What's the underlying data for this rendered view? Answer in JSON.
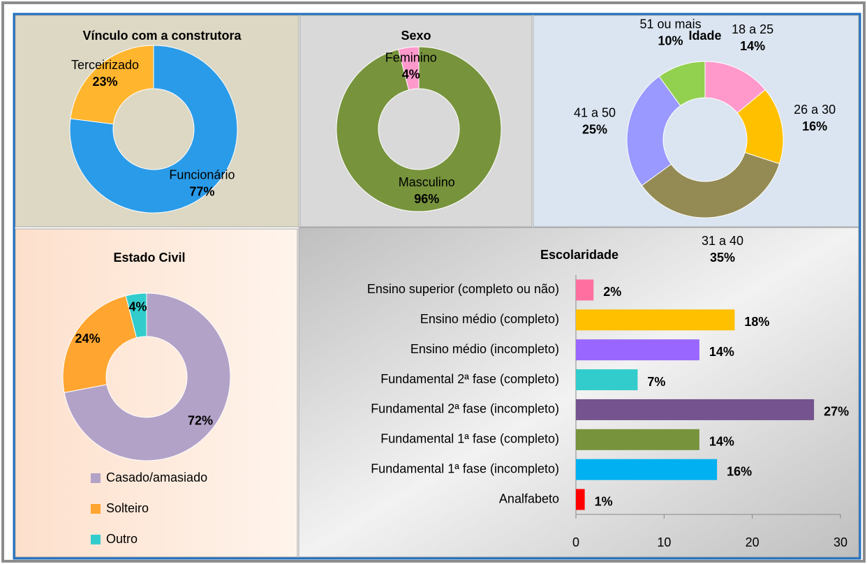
{
  "chart_data": [
    {
      "type": "donut",
      "title": "Vínculo com a construtora",
      "categories": [
        "Funcionário",
        "Terceirizado"
      ],
      "values": [
        77,
        23
      ],
      "value_labels": [
        "77%",
        "23%"
      ],
      "colors": [
        "#2a9be8",
        "#ffb52e"
      ]
    },
    {
      "type": "donut",
      "title": "Sexo",
      "categories": [
        "Masculino",
        "Feminino"
      ],
      "values": [
        96,
        4
      ],
      "value_labels": [
        "96%",
        "4%"
      ],
      "colors": [
        "#77933c",
        "#ff99cc"
      ]
    },
    {
      "type": "donut",
      "title": "Idade",
      "categories": [
        "18 a 25",
        "26 a 30",
        "31 a 40",
        "41 a 50",
        "51 ou mais"
      ],
      "values": [
        14,
        16,
        35,
        25,
        10
      ],
      "value_labels": [
        "14%",
        "16%",
        "35%",
        "25%",
        "10%"
      ],
      "colors": [
        "#ff99cc",
        "#ffc000",
        "#948a54",
        "#9999ff",
        "#92d050"
      ]
    },
    {
      "type": "donut",
      "title": "Estado Civil",
      "categories": [
        "Casado/amasiado",
        "Solteiro",
        "Outro"
      ],
      "values": [
        72,
        24,
        4
      ],
      "value_labels": [
        "72%",
        "24%",
        "4%"
      ],
      "colors": [
        "#b3a2c7",
        "#ffa530",
        "#33cccc"
      ],
      "legend": true
    },
    {
      "type": "hbar",
      "title": "Escolaridade",
      "categories": [
        "Ensino superior (completo ou não)",
        "Ensino médio (completo)",
        "Ensino médio (incompleto)",
        "Fundamental 2ª fase (completo)",
        "Fundamental 2ª fase (incompleto)",
        "Fundamental 1ª fase (completo)",
        "Fundamental 1ª fase (incompleto)",
        "Analfabeto"
      ],
      "values": [
        2,
        18,
        14,
        7,
        27,
        14,
        16,
        1
      ],
      "value_labels": [
        "2%",
        "18%",
        "14%",
        "7%",
        "27%",
        "14%",
        "16%",
        "1%"
      ],
      "colors": [
        "#ff6fa0",
        "#ffc000",
        "#9966ff",
        "#33cccc",
        "#74538f",
        "#77933c",
        "#00b0f0",
        "#ff0000"
      ],
      "xlim": [
        0,
        30
      ],
      "xticks": [
        0,
        10,
        20,
        30
      ]
    }
  ]
}
